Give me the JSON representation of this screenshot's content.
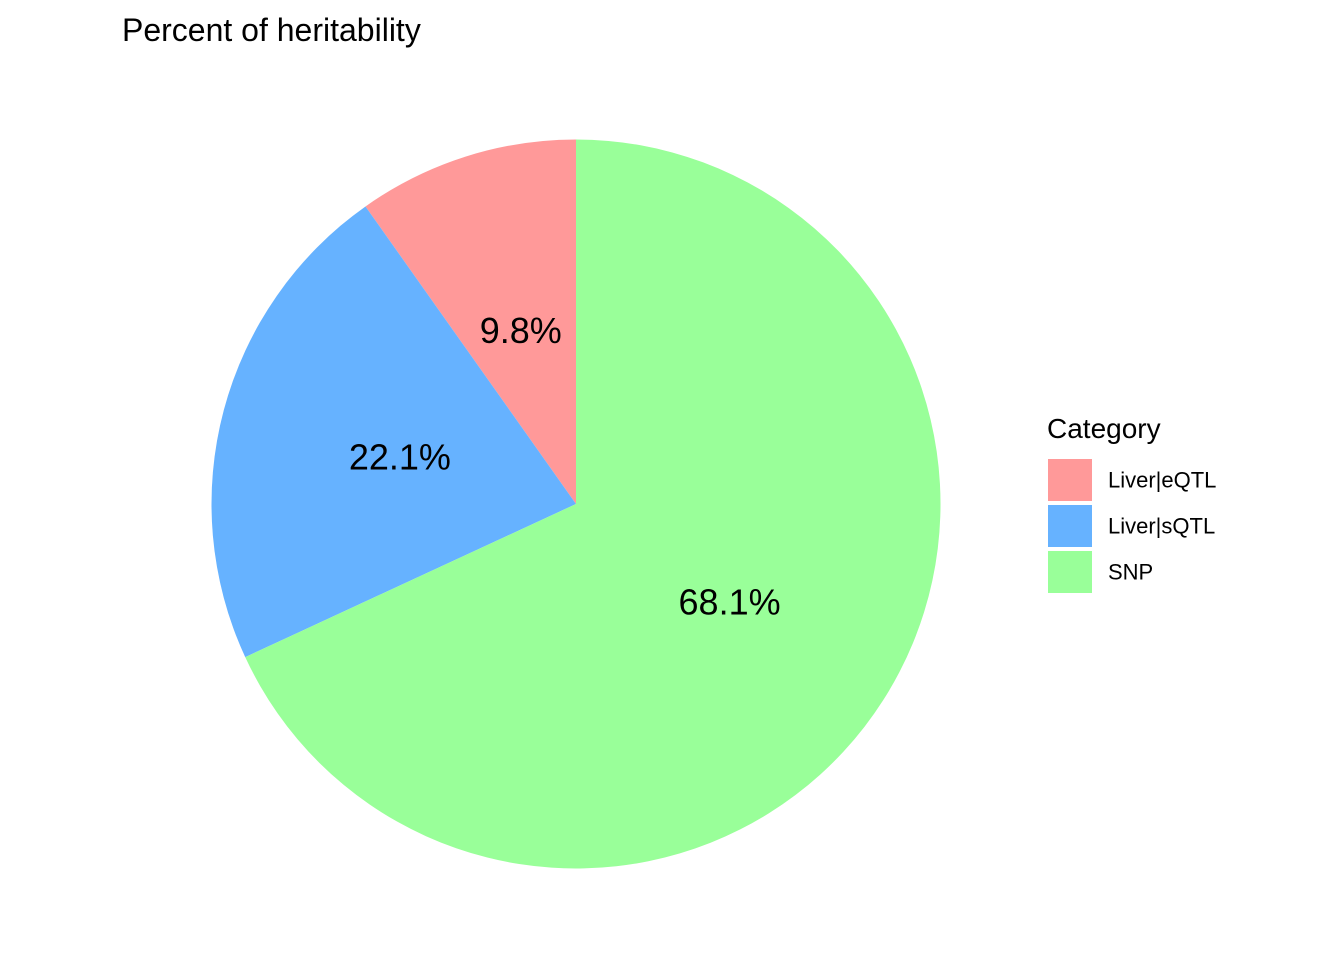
{
  "chart_data": {
    "type": "pie",
    "title": "Percent of heritability",
    "legend": {
      "title": "Category",
      "placement": "right"
    },
    "direction": "counterclockwise",
    "start": "top",
    "slices": [
      {
        "category": "Liver|eQTL",
        "value": 9.8,
        "label": "9.8%",
        "color": "#FF9999"
      },
      {
        "category": "Liver|sQTL",
        "value": 22.1,
        "label": "22.1%",
        "color": "#66B2FF"
      },
      {
        "category": "SNP",
        "value": 68.1,
        "label": "68.1%",
        "color": "#99FF99"
      }
    ]
  }
}
